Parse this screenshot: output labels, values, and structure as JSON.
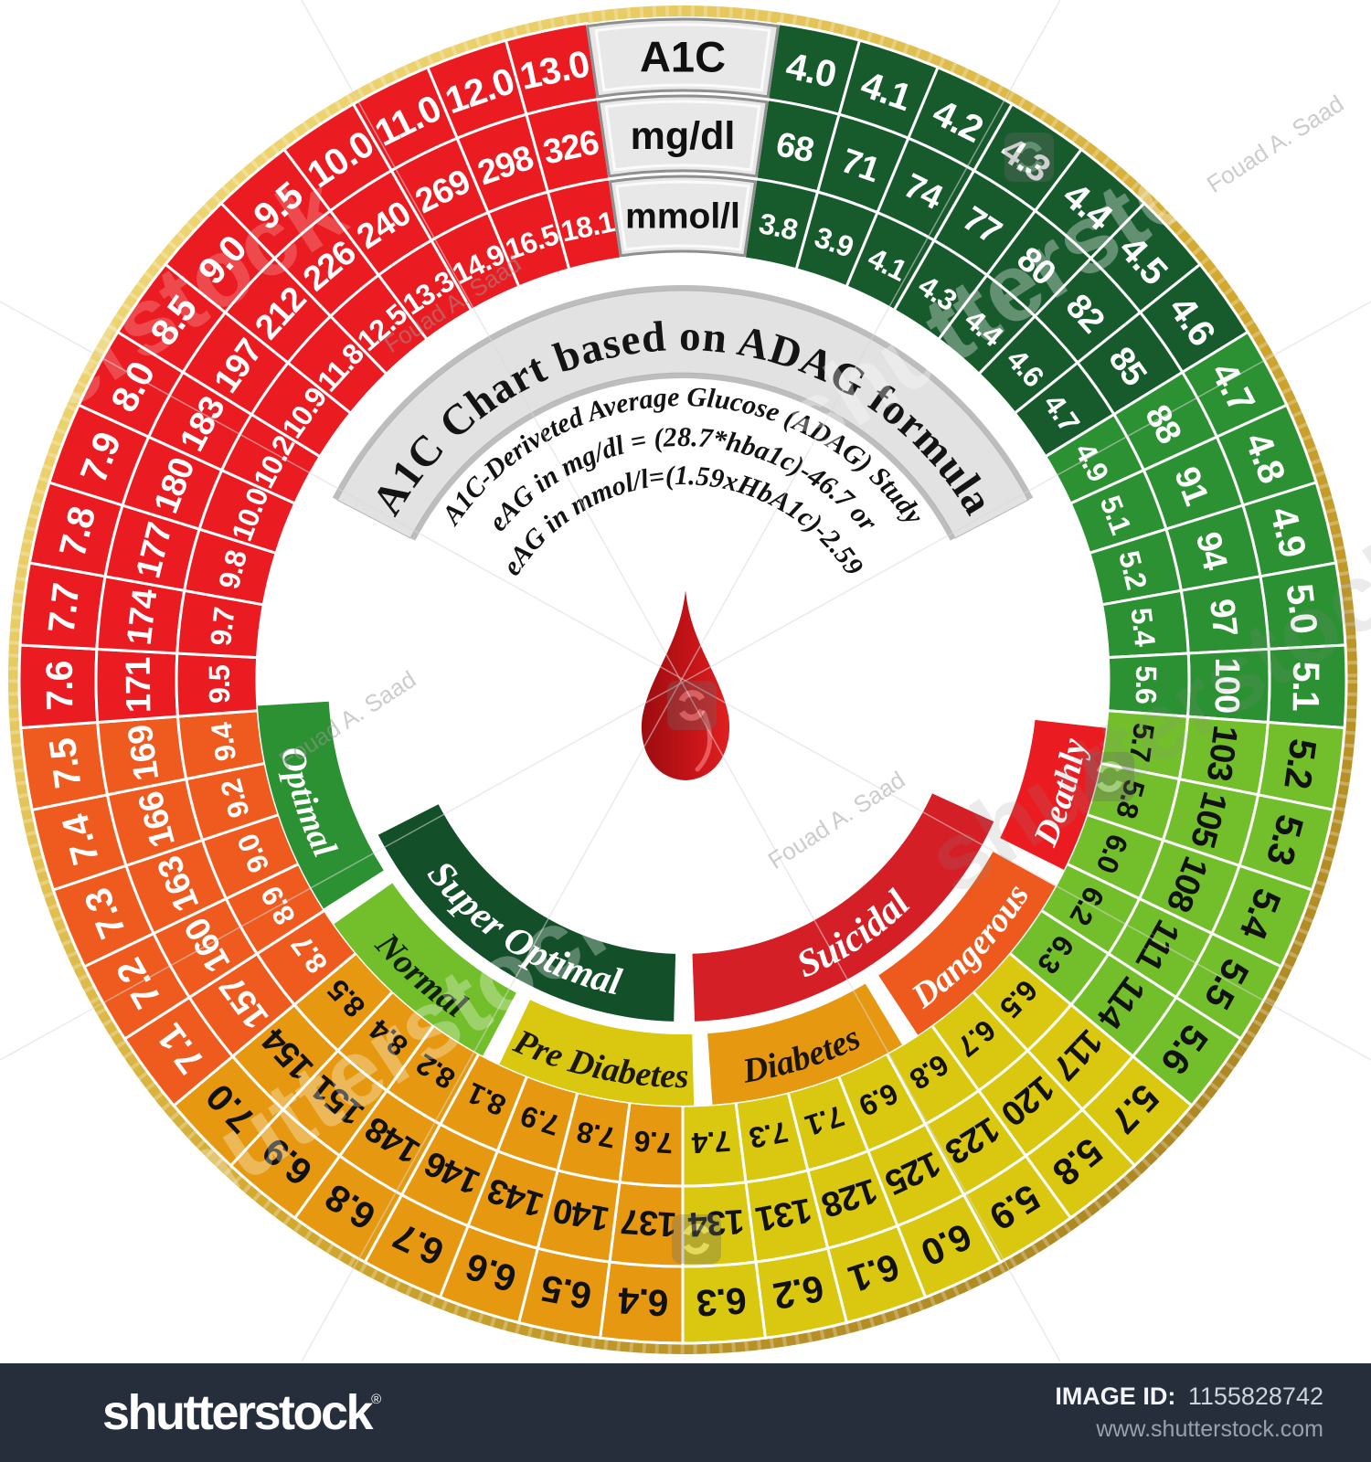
{
  "wheel": {
    "title_band": "A1C Chart based on ADAG formula",
    "formula_lines": [
      "A1C-Deriveted Average Glucose (ADAG) Study",
      "eAG in mg/dl = (28.7*hba1c)-46.7 or",
      "eAG in mmol/l=(1.59xHbA1c)-2.59"
    ],
    "rim_color_outer": "#f7e489",
    "rim_color_mid": "#d3a92f",
    "rim_color_dark": "#9d7a1e",
    "title_band_fill": "#e2e2e2",
    "title_band_edge": "#b5b5b5",
    "header_box_fill": "#e8e8e8",
    "header_box_border": "#8f8f8f",
    "header_text_color": "#101010",
    "blood_drop_colors": [
      "#9c0d10",
      "#c31317",
      "#e02020"
    ]
  },
  "chart_data": {
    "type": "table",
    "title": "A1C Chart based on ADAG formula",
    "columns": [
      "A1C",
      "mg/dl",
      "mmol/l"
    ],
    "rows": [
      [
        "4.0",
        "68",
        "3.8"
      ],
      [
        "4.1",
        "71",
        "3.9"
      ],
      [
        "4.2",
        "74",
        "4.1"
      ],
      [
        "4.3",
        "77",
        "4.3"
      ],
      [
        "4.4",
        "80",
        "4.4"
      ],
      [
        "4.5",
        "82",
        "4.6"
      ],
      [
        "4.6",
        "85",
        "4.7"
      ],
      [
        "4.7",
        "88",
        "4.9"
      ],
      [
        "4.8",
        "91",
        "5.1"
      ],
      [
        "4.9",
        "94",
        "5.2"
      ],
      [
        "5.0",
        "97",
        "5.4"
      ],
      [
        "5.1",
        "100",
        "5.6"
      ],
      [
        "5.2",
        "103",
        "5.7"
      ],
      [
        "5.3",
        "105",
        "5.8"
      ],
      [
        "5.4",
        "108",
        "6.0"
      ],
      [
        "5.5",
        "111",
        "6.2"
      ],
      [
        "5.6",
        "114",
        "6.3"
      ],
      [
        "5.7",
        "117",
        "6.5"
      ],
      [
        "5.8",
        "120",
        "6.7"
      ],
      [
        "5.9",
        "123",
        "6.8"
      ],
      [
        "6.0",
        "125",
        "6.9"
      ],
      [
        "6.1",
        "128",
        "7.1"
      ],
      [
        "6.2",
        "131",
        "7.3"
      ],
      [
        "6.3",
        "134",
        "7.4"
      ],
      [
        "6.4",
        "137",
        "7.6"
      ],
      [
        "6.5",
        "140",
        "7.8"
      ],
      [
        "6.6",
        "143",
        "7.9"
      ],
      [
        "6.7",
        "146",
        "8.1"
      ],
      [
        "6.8",
        "148",
        "8.2"
      ],
      [
        "6.9",
        "151",
        "8.4"
      ],
      [
        "7.0",
        "154",
        "8.5"
      ],
      [
        "7.1",
        "157",
        "8.7"
      ],
      [
        "7.2",
        "160",
        "8.9"
      ],
      [
        "7.3",
        "163",
        "9.0"
      ],
      [
        "7.4",
        "166",
        "9.2"
      ],
      [
        "7.5",
        "169",
        "9.4"
      ],
      [
        "7.6",
        "171",
        "9.5"
      ],
      [
        "7.7",
        "174",
        "9.7"
      ],
      [
        "7.8",
        "177",
        "9.8"
      ],
      [
        "7.9",
        "180",
        "10.0"
      ],
      [
        "8.0",
        "183",
        "10.2"
      ],
      [
        "8.5",
        "197",
        "10.9"
      ],
      [
        "9.0",
        "212",
        "11.8"
      ],
      [
        "9.5",
        "226",
        "12.5"
      ],
      [
        "10.0",
        "240",
        "13.3"
      ],
      [
        "11.0",
        "269",
        "14.9"
      ],
      [
        "12.0",
        "298",
        "16.5"
      ],
      [
        "13.0",
        "326",
        "18.1"
      ]
    ],
    "color_bands": [
      {
        "a1c_from": 4.0,
        "a1c_to": 4.65,
        "fill": "#175b2d",
        "text": "#ffffff"
      },
      {
        "a1c_from": 4.65,
        "a1c_to": 5.15,
        "fill": "#2c9132",
        "text": "#ffffff"
      },
      {
        "a1c_from": 5.15,
        "a1c_to": 5.65,
        "fill": "#73bf2b",
        "text": "#111111"
      },
      {
        "a1c_from": 5.65,
        "a1c_to": 6.35,
        "fill": "#d9c80f",
        "text": "#111111"
      },
      {
        "a1c_from": 6.35,
        "a1c_to": 7.05,
        "fill": "#e69910",
        "text": "#111111"
      },
      {
        "a1c_from": 7.05,
        "a1c_to": 7.55,
        "fill": "#ef5a1e",
        "text": "#ffffff"
      },
      {
        "a1c_from": 7.55,
        "a1c_to": 13.1,
        "fill": "#ea1c22",
        "text": "#ffffff"
      }
    ],
    "category_rings": {
      "outer": [
        {
          "label": "Deathly",
          "fill": "#ea1c22",
          "text_color": "#ffffff",
          "start_deg": 96.5,
          "end_deg": 116.5
        },
        {
          "label": "Dangerous",
          "fill": "#ee5a1e",
          "text_color": "#ffffff",
          "start_deg": 119,
          "end_deg": 146.5
        },
        {
          "label": "Diabetes",
          "fill": "#e69910",
          "text_color": "#1c1503",
          "start_deg": 149,
          "end_deg": 176
        },
        {
          "label": "Pre Diabetes",
          "fill": "#d9c80f",
          "text_color": "#1c1a04",
          "start_deg": 178.5,
          "end_deg": 205.5
        },
        {
          "label": "Normal",
          "fill": "#73bf2b",
          "text_color": "#122005",
          "start_deg": 208,
          "end_deg": 235
        },
        {
          "label": "Optimal",
          "fill": "#2c9132",
          "text_color": "#ffffff",
          "start_deg": 237.5,
          "end_deg": 266.5
        }
      ],
      "inner": [
        {
          "label": "Suicidal",
          "fill": "#d51f27",
          "text_color": "#ffffff",
          "start_deg": 114.5,
          "end_deg": 178
        },
        {
          "label": "Super Optimal",
          "fill": "#134f28",
          "text_color": "#ffffff",
          "start_deg": 181.5,
          "end_deg": 243
        }
      ]
    },
    "legend_position": "center-bottom",
    "grid": false
  },
  "watermarks": {
    "brand": "shutterstock",
    "credit": "Fouad A. Saad"
  },
  "footer": {
    "bar_color": "#252e3a",
    "logo": "shutterstock",
    "registered": "®",
    "image_id_label": "IMAGE ID:",
    "image_id": "1155828742",
    "website": "www.shutterstock.com"
  }
}
